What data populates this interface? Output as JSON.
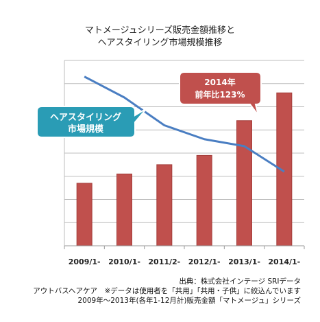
{
  "title_lines": [
    "マトメージュシリーズ販売金額推移と",
    "ヘアスタイリング市場規模推移"
  ],
  "colors": {
    "bar": "#c0504d",
    "bar_edge": "#a33d3a",
    "line": "#4a7ec2",
    "grid": "#bcbcbc",
    "callout_teal": "#2a9cb5",
    "callout_red": "#c0504d"
  },
  "callouts": {
    "market": [
      "ヘアスタイリング",
      "市場規模"
    ],
    "growth": [
      "2014年",
      "前年比123%"
    ]
  },
  "notes": {
    "source": "出典：株式会社インテージ SRIデータ",
    "scope": "アウトバスヘアケア　※データは使用者を「共用」「共用・子供」に絞込んでいます",
    "period": "2009年～2013年(各年1-12月計)販売金額「マトメージュ」シリーズ"
  },
  "chart_data": {
    "type": "bar+line",
    "title": "マトメージュシリーズ販売金額推移と ヘアスタイリング市場規模推移",
    "categories": [
      "2009/1-",
      "2010/1-",
      "2011/2-",
      "2012/1-",
      "2013/1-",
      "2014/1-"
    ],
    "ylim": [
      0,
      8
    ],
    "grid": true,
    "series": [
      {
        "type": "bar",
        "values": [
          2.7,
          3.1,
          3.5,
          3.9,
          5.4,
          6.6
        ]
      },
      {
        "type": "line",
        "name": "ヘアスタイリング市場規模",
        "values": [
          7.3,
          6.4,
          5.2,
          4.6,
          4.3,
          3.2
        ]
      }
    ]
  }
}
